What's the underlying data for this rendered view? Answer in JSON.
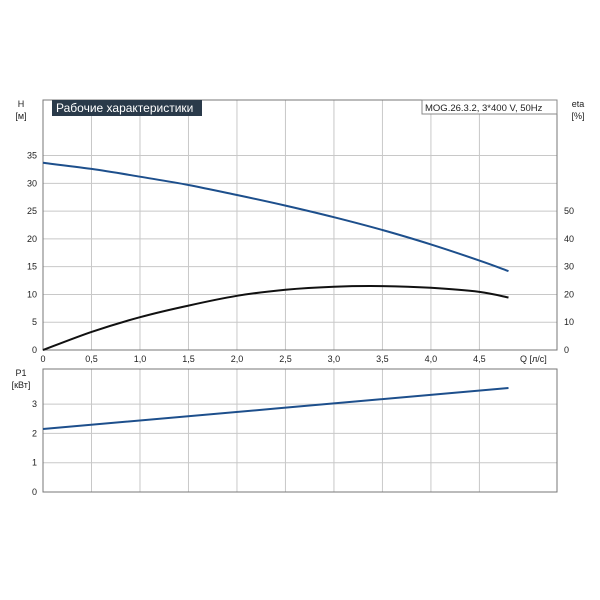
{
  "title": "Рабочие характеристики",
  "model_label": "MOG.26.3.2, 3*400 V, 50Hz",
  "colors": {
    "head": "#1d4f8c",
    "eta": "#111111",
    "power": "#1d4f8c",
    "grid": "#c8c8c8"
  },
  "chart_data": [
    {
      "type": "line",
      "title": "Рабочие характеристики",
      "x_label": "Q [л/с]",
      "x_ticks": [
        "0",
        "0,5",
        "1,0",
        "1,5",
        "2,0",
        "2,5",
        "3,0",
        "3,5",
        "4,0",
        "4,5"
      ],
      "xlim": [
        0,
        5.3
      ],
      "y_left_label": "H",
      "y_left_unit": "[м]",
      "y_left_ticks": [
        "0",
        "5",
        "10",
        "15",
        "20",
        "25",
        "30",
        "35"
      ],
      "y_left_lim": [
        0,
        45
      ],
      "y_right_label": "eta",
      "y_right_unit": "[%]",
      "y_right_ticks": [
        "0",
        "10",
        "20",
        "30",
        "40",
        "50"
      ],
      "y_right_lim": [
        0,
        90
      ],
      "grid": true,
      "series": [
        {
          "axis": "left",
          "color": "#1d4f8c",
          "x": [
            0,
            0.5,
            1.0,
            1.5,
            2.0,
            2.5,
            3.0,
            3.5,
            4.0,
            4.5,
            4.8
          ],
          "y": [
            33.7,
            32.6,
            31.2,
            29.7,
            27.9,
            26.0,
            23.9,
            21.6,
            19.0,
            16.1,
            14.2
          ]
        },
        {
          "axis": "right",
          "color": "#111111",
          "x": [
            0,
            0.5,
            1.0,
            1.5,
            2.0,
            2.5,
            3.0,
            3.5,
            4.0,
            4.5,
            4.8
          ],
          "y": [
            0,
            6.5,
            11.8,
            16.0,
            19.5,
            21.7,
            22.8,
            23.0,
            22.4,
            20.9,
            18.9
          ]
        }
      ]
    },
    {
      "type": "line",
      "y_label": "P1",
      "y_unit": "[кВт]",
      "y_ticks": [
        "0",
        "1",
        "2",
        "3"
      ],
      "ylim": [
        0,
        4.2
      ],
      "xlim": [
        0,
        5.3
      ],
      "grid": true,
      "series": [
        {
          "color": "#1d4f8c",
          "x": [
            0,
            4.8
          ],
          "y": [
            2.15,
            3.55
          ]
        }
      ]
    }
  ]
}
